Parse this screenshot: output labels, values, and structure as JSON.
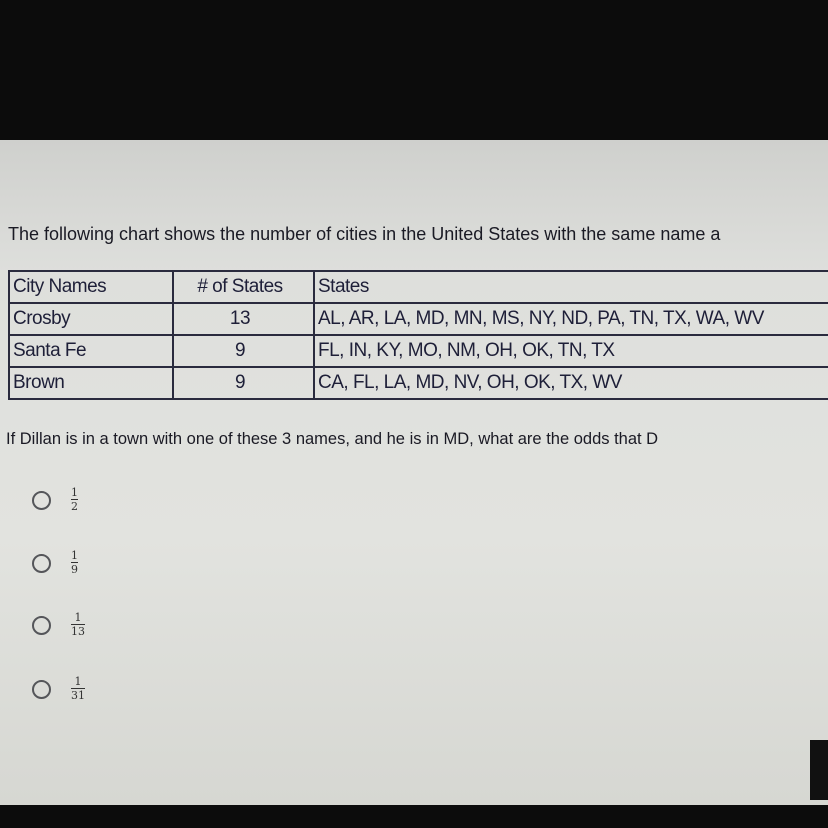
{
  "intro": "The following chart shows the number of cities in the United States with the same name a",
  "table": {
    "headers": [
      "City Names",
      "# of States",
      "States"
    ],
    "rows": [
      [
        "Crosby",
        "13",
        "AL, AR, LA, MD, MN, MS, NY, ND, PA, TN, TX, WA, WV"
      ],
      [
        "Santa Fe",
        "9",
        "FL, IN, KY, MO, NM, OH, OK, TN, TX"
      ],
      [
        "Brown",
        "9",
        "CA, FL, LA, MD, NV, OH, OK, TX, WV"
      ]
    ]
  },
  "question": "If Dillan is in a town with one of these 3 names, and he is in MD, what are the odds that D",
  "options": [
    {
      "num": "1",
      "den": "2"
    },
    {
      "num": "1",
      "den": "9"
    },
    {
      "num": "1",
      "den": "13"
    },
    {
      "num": "1",
      "den": "31"
    }
  ]
}
